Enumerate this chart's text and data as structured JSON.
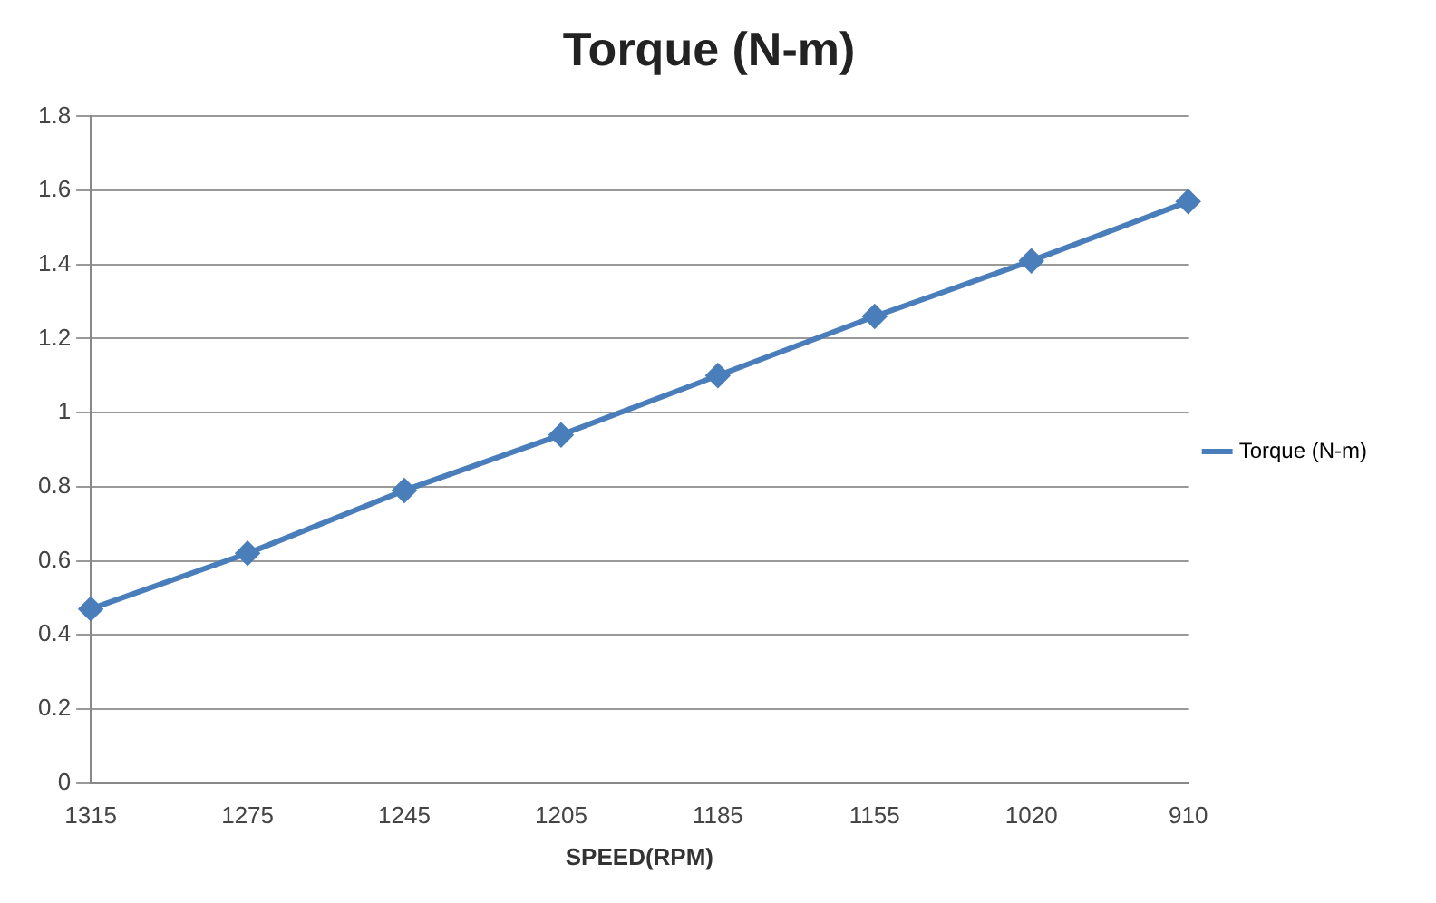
{
  "chart_data": {
    "type": "line",
    "title": "Torque (N-m)",
    "xlabel": "SPEED(RPM)",
    "categories": [
      "1315",
      "1275",
      "1245",
      "1205",
      "1185",
      "1155",
      "1020",
      "910"
    ],
    "series": [
      {
        "name": "Torque (N-m)",
        "color": "#4a7ebb",
        "values": [
          0.47,
          0.62,
          0.79,
          0.94,
          1.1,
          1.26,
          1.41,
          1.57
        ]
      }
    ],
    "ylim": [
      0,
      1.8
    ],
    "yticks": [
      0,
      0.2,
      0.4,
      0.6,
      0.8,
      1,
      1.2,
      1.4,
      1.6,
      1.8
    ],
    "grid": "y",
    "legend": "right",
    "marker": "diamond",
    "line_style": "solid"
  }
}
